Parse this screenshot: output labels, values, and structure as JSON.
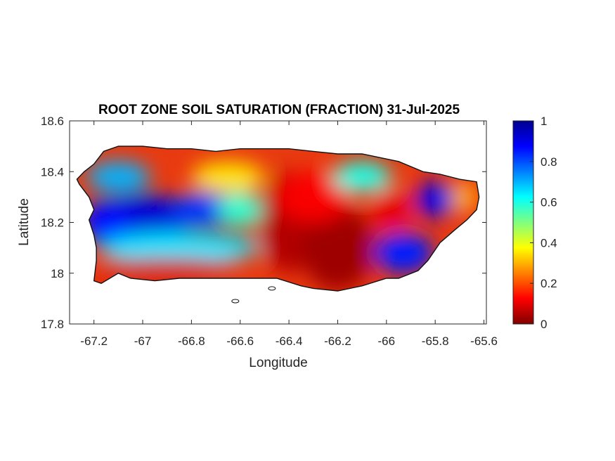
{
  "chart_data": {
    "type": "heatmap",
    "title": "ROOT ZONE SOIL SATURATION (FRACTION) 31-Jul-2025",
    "xlabel": "Longitude",
    "ylabel": "Latitude",
    "xlim": [
      -67.3,
      -65.59
    ],
    "ylim": [
      17.8,
      18.6
    ],
    "x_ticks": [
      -67.2,
      -67,
      -66.8,
      -66.6,
      -66.4,
      -66.2,
      -66,
      -65.8,
      -65.6
    ],
    "x_tick_labels": [
      "-67.2",
      "-67",
      "-66.8",
      "-66.6",
      "-66.4",
      "-66.2",
      "-66",
      "-65.8",
      "-65.6"
    ],
    "y_ticks": [
      17.8,
      18,
      18.2,
      18.4,
      18.6
    ],
    "y_tick_labels": [
      "17.8",
      "18",
      "18.2",
      "18.4",
      "18.6"
    ],
    "colorbar": {
      "colormap": "jet",
      "range": [
        0,
        1
      ],
      "ticks": [
        0,
        0.2,
        0.4,
        0.6,
        0.8,
        1
      ],
      "tick_labels": [
        "0",
        "0.2",
        "0.4",
        "0.6",
        "0.8",
        "1"
      ]
    },
    "grid": false,
    "coastline": [
      [
        -67.27,
        18.37
      ],
      [
        -67.24,
        18.4
      ],
      [
        -67.2,
        18.43
      ],
      [
        -67.16,
        18.48
      ],
      [
        -67.1,
        18.5
      ],
      [
        -67.0,
        18.5
      ],
      [
        -66.9,
        18.49
      ],
      [
        -66.8,
        18.49
      ],
      [
        -66.7,
        18.48
      ],
      [
        -66.6,
        18.49
      ],
      [
        -66.5,
        18.49
      ],
      [
        -66.4,
        18.49
      ],
      [
        -66.3,
        18.48
      ],
      [
        -66.2,
        18.47
      ],
      [
        -66.1,
        18.47
      ],
      [
        -66.0,
        18.45
      ],
      [
        -65.95,
        18.44
      ],
      [
        -65.9,
        18.42
      ],
      [
        -65.85,
        18.4
      ],
      [
        -65.78,
        18.39
      ],
      [
        -65.7,
        18.37
      ],
      [
        -65.63,
        18.36
      ],
      [
        -65.62,
        18.3
      ],
      [
        -65.63,
        18.25
      ],
      [
        -65.67,
        18.21
      ],
      [
        -65.72,
        18.17
      ],
      [
        -65.78,
        18.12
      ],
      [
        -65.83,
        18.05
      ],
      [
        -65.87,
        18.01
      ],
      [
        -65.95,
        17.98
      ],
      [
        -66.0,
        17.98
      ],
      [
        -66.1,
        17.95
      ],
      [
        -66.2,
        17.93
      ],
      [
        -66.3,
        17.94
      ],
      [
        -66.35,
        17.95
      ],
      [
        -66.45,
        17.98
      ],
      [
        -66.55,
        17.98
      ],
      [
        -66.65,
        17.98
      ],
      [
        -66.75,
        17.98
      ],
      [
        -66.85,
        17.98
      ],
      [
        -66.95,
        17.97
      ],
      [
        -67.05,
        17.98
      ],
      [
        -67.1,
        18.0
      ],
      [
        -67.17,
        17.96
      ],
      [
        -67.2,
        17.97
      ],
      [
        -67.19,
        18.05
      ],
      [
        -67.19,
        18.1
      ],
      [
        -67.2,
        18.15
      ],
      [
        -67.22,
        18.21
      ],
      [
        -67.2,
        18.25
      ],
      [
        -67.22,
        18.3
      ],
      [
        -67.26,
        18.35
      ]
    ],
    "regions": [
      {
        "lon": -67.0,
        "lat": 18.22,
        "rx": 0.21,
        "ry": 0.09,
        "value": 0.92
      },
      {
        "lon": -67.15,
        "lat": 18.2,
        "rx": 0.1,
        "ry": 0.09,
        "value": 0.86
      },
      {
        "lon": -66.75,
        "lat": 18.25,
        "rx": 0.13,
        "ry": 0.07,
        "value": 0.82
      },
      {
        "lon": -67.1,
        "lat": 18.38,
        "rx": 0.13,
        "ry": 0.06,
        "value": 0.7
      },
      {
        "lon": -66.6,
        "lat": 18.25,
        "rx": 0.09,
        "ry": 0.07,
        "value": 0.58
      },
      {
        "lon": -66.65,
        "lat": 18.38,
        "rx": 0.15,
        "ry": 0.06,
        "value": 0.35
      },
      {
        "lon": -66.85,
        "lat": 18.1,
        "rx": 0.33,
        "ry": 0.06,
        "value": 0.65
      },
      {
        "lon": -66.9,
        "lat": 18.02,
        "rx": 0.3,
        "ry": 0.04,
        "value": 0.08
      },
      {
        "lon": -66.4,
        "lat": 18.2,
        "rx": 0.12,
        "ry": 0.2,
        "value": 0.05
      },
      {
        "lon": -66.2,
        "lat": 18.1,
        "rx": 0.15,
        "ry": 0.17,
        "value": 0.03
      },
      {
        "lon": -66.3,
        "lat": 18.3,
        "rx": 0.15,
        "ry": 0.1,
        "value": 0.12
      },
      {
        "lon": -66.1,
        "lat": 18.38,
        "rx": 0.12,
        "ry": 0.06,
        "value": 0.6
      },
      {
        "lon": -65.93,
        "lat": 18.08,
        "rx": 0.12,
        "ry": 0.08,
        "value": 0.85
      },
      {
        "lon": -65.8,
        "lat": 18.29,
        "rx": 0.08,
        "ry": 0.07,
        "value": 0.9
      },
      {
        "lon": -65.68,
        "lat": 18.3,
        "rx": 0.05,
        "ry": 0.06,
        "value": 0.3
      },
      {
        "lon": -65.98,
        "lat": 18.25,
        "rx": 0.08,
        "ry": 0.08,
        "value": 0.1
      }
    ],
    "offshore_islands": [
      {
        "lon": -66.62,
        "lat": 17.89
      },
      {
        "lon": -66.47,
        "lat": 17.94
      }
    ]
  }
}
